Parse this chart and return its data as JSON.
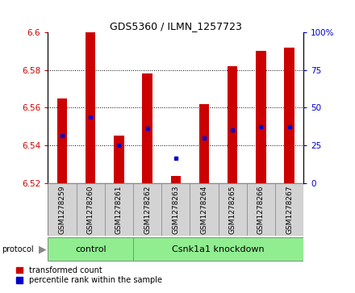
{
  "title": "GDS5360 / ILMN_1257723",
  "samples": [
    "GSM1278259",
    "GSM1278260",
    "GSM1278261",
    "GSM1278262",
    "GSM1278263",
    "GSM1278264",
    "GSM1278265",
    "GSM1278266",
    "GSM1278267"
  ],
  "red_values": [
    6.565,
    6.6,
    6.545,
    6.578,
    6.524,
    6.562,
    6.582,
    6.59,
    6.592
  ],
  "blue_values": [
    6.545,
    6.555,
    6.54,
    6.549,
    6.533,
    6.544,
    6.548,
    6.55,
    6.55
  ],
  "ylim_left": [
    6.52,
    6.6
  ],
  "ylim_right": [
    0,
    100
  ],
  "yticks_left": [
    6.52,
    6.54,
    6.56,
    6.58,
    6.6
  ],
  "ytick_labels_left": [
    "6.52",
    "6.54",
    "6.56",
    "6.58",
    "6.6"
  ],
  "yticks_right": [
    0,
    25,
    50,
    75,
    100
  ],
  "ytick_labels_right": [
    "0",
    "25",
    "50",
    "75",
    "100%"
  ],
  "grid_yticks": [
    6.54,
    6.56,
    6.58
  ],
  "bar_bottom": 6.52,
  "bar_color": "#cc0000",
  "blue_color": "#0000cc",
  "bar_width": 0.35,
  "protocol_labels": [
    "control",
    "Csnk1a1 knockdown"
  ],
  "protocol_color": "#90ee90",
  "label_box_color": "#d3d3d3",
  "legend_red_label": "transformed count",
  "legend_blue_label": "percentile rank within the sample",
  "title_fontsize": 9,
  "tick_fontsize": 7.5,
  "sample_fontsize": 6.5,
  "proto_fontsize": 8,
  "legend_fontsize": 7
}
